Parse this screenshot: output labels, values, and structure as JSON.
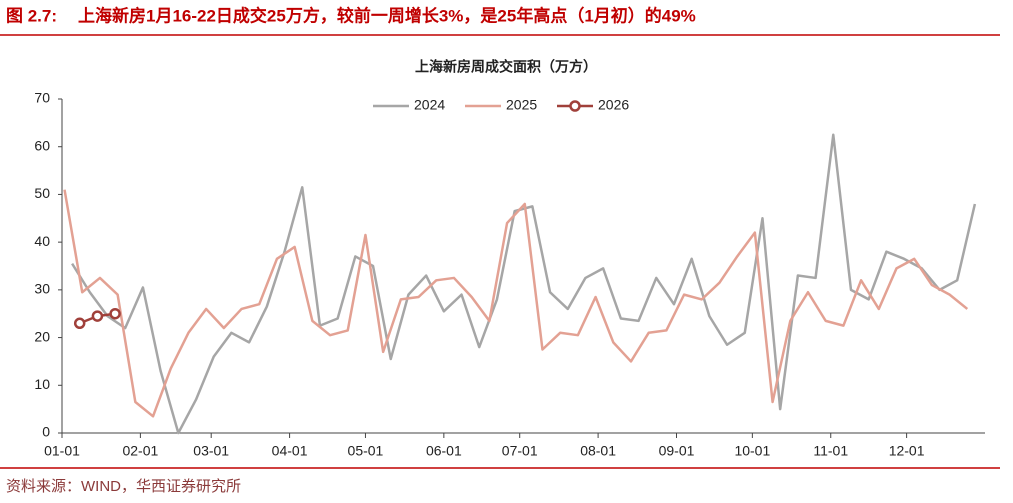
{
  "figure_label": "图 2.7:",
  "headline": "上海新房1月16-22日成交25万方，较前一周增长3%，是25年高点（1月初）的49%",
  "source": "资料来源：WIND，华西证券研究所",
  "chart_data": {
    "type": "line",
    "title": "上海新房周成交面积（万方）",
    "xlim": [
      0,
      365
    ],
    "xticks": [
      {
        "value": 0,
        "label": "01-01"
      },
      {
        "value": 31,
        "label": "02-01"
      },
      {
        "value": 59,
        "label": "03-01"
      },
      {
        "value": 90,
        "label": "04-01"
      },
      {
        "value": 120,
        "label": "05-01"
      },
      {
        "value": 151,
        "label": "06-01"
      },
      {
        "value": 181,
        "label": "07-01"
      },
      {
        "value": 212,
        "label": "08-01"
      },
      {
        "value": 243,
        "label": "09-01"
      },
      {
        "value": 273,
        "label": "10-01"
      },
      {
        "value": 304,
        "label": "11-01"
      },
      {
        "value": 334,
        "label": "12-01"
      }
    ],
    "ylim": [
      0,
      70
    ],
    "yticks": [
      0,
      10,
      20,
      30,
      40,
      50,
      60,
      70
    ],
    "grid": false,
    "legend": "top",
    "series": [
      {
        "name": "2024",
        "color": "#a6a6a6",
        "marker": false,
        "x": [
          4,
          11,
          18,
          25,
          32,
          39,
          46,
          53,
          60,
          67,
          74,
          81,
          88,
          95,
          102,
          109,
          116,
          123,
          130,
          137,
          144,
          151,
          158,
          165,
          172,
          179,
          186,
          193,
          200,
          207,
          214,
          221,
          228,
          235,
          242,
          249,
          256,
          263,
          270,
          277,
          284,
          291,
          298,
          305,
          312,
          319,
          326,
          333,
          340,
          347,
          354,
          361
        ],
        "values": [
          35.5,
          29.5,
          24.5,
          22,
          30.5,
          13,
          0,
          7,
          16,
          21,
          19,
          26.5,
          38,
          51.5,
          22.5,
          24,
          37,
          35,
          15.5,
          29,
          33,
          25.5,
          29,
          18,
          28,
          46.5,
          47.5,
          29.5,
          26,
          32.5,
          34.5,
          24,
          23.5,
          32.5,
          27,
          36.5,
          24.5,
          18.5,
          21,
          45,
          5,
          33,
          32.5,
          62.5,
          30,
          28,
          38,
          36.5,
          34.5,
          30,
          32,
          48
        ]
      },
      {
        "name": "2025",
        "color": "#e3a193",
        "marker": false,
        "x": [
          1,
          8,
          15,
          22,
          29,
          36,
          43,
          50,
          57,
          64,
          71,
          78,
          85,
          92,
          99,
          106,
          113,
          120,
          127,
          134,
          141,
          148,
          155,
          162,
          169,
          176,
          183,
          190,
          197,
          204,
          211,
          218,
          225,
          232,
          239,
          246,
          253,
          260,
          267,
          274,
          281,
          288,
          295,
          302,
          309,
          316,
          323,
          330,
          337,
          344,
          351,
          358
        ],
        "values": [
          51,
          29.5,
          32.5,
          29,
          6.5,
          3.5,
          13.5,
          21,
          26,
          22,
          26,
          27,
          36.5,
          39,
          23.5,
          20.5,
          21.5,
          41.5,
          17,
          28,
          28.5,
          32,
          32.5,
          28.5,
          23.5,
          44,
          48,
          17.5,
          21,
          20.5,
          28.5,
          19,
          15,
          21,
          21.5,
          29,
          28,
          31.5,
          37,
          42,
          6.5,
          23.5,
          29.5,
          23.5,
          22.5,
          32,
          26,
          34.5,
          36.5,
          31,
          29,
          26
        ]
      },
      {
        "name": "2026",
        "color": "#a0403a",
        "marker": true,
        "x": [
          7,
          14,
          21
        ],
        "values": [
          23,
          24.5,
          25
        ]
      }
    ]
  }
}
